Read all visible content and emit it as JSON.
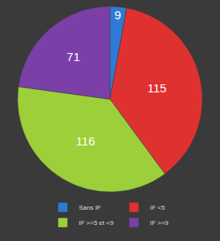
{
  "chart_data": {
    "type": "pie",
    "categories": [
      "Sans IF",
      "IF <5",
      "IF >=5 et <9",
      "IF >=9"
    ],
    "values": [
      9,
      115,
      116,
      71
    ],
    "colors": [
      "#2f7ad6",
      "#e03131",
      "#9dcf3a",
      "#7b40a8"
    ],
    "data_labels": true,
    "legend": "bottom"
  }
}
